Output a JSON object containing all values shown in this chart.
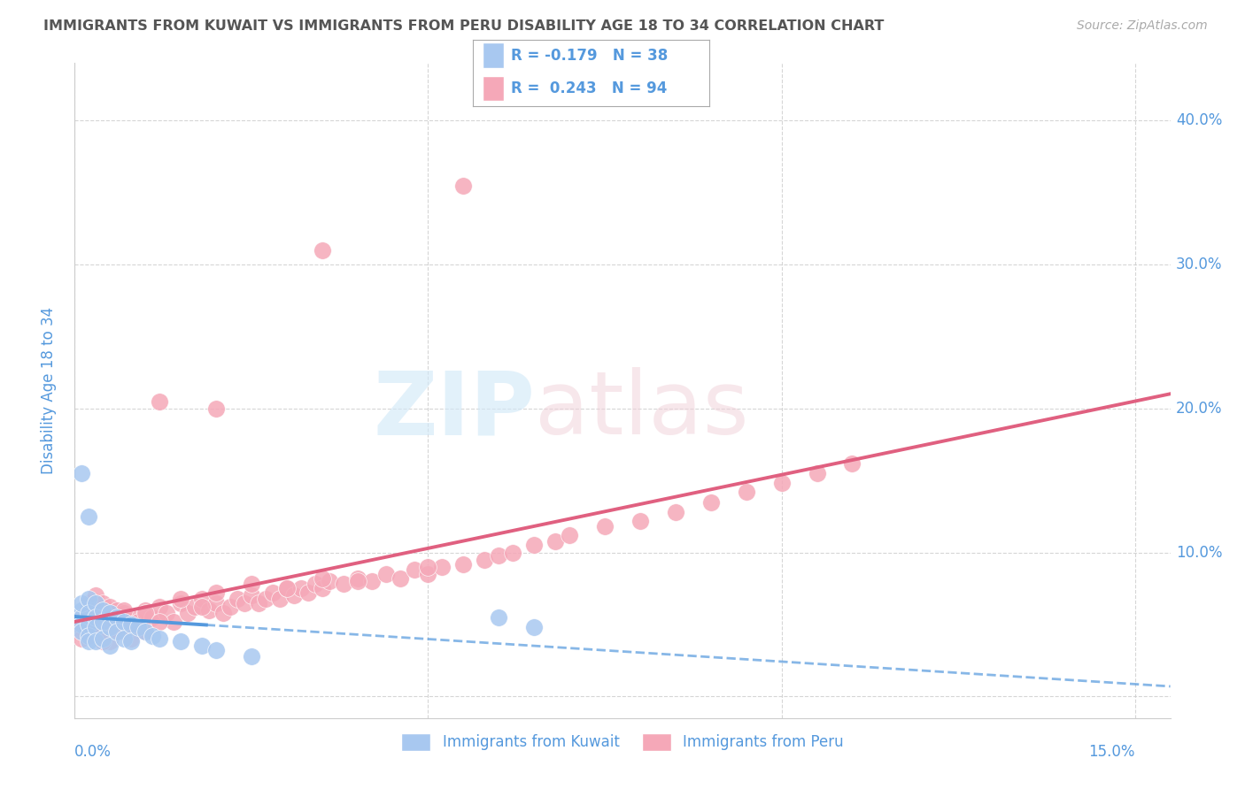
{
  "title": "IMMIGRANTS FROM KUWAIT VS IMMIGRANTS FROM PERU DISABILITY AGE 18 TO 34 CORRELATION CHART",
  "source": "Source: ZipAtlas.com",
  "ylabel": "Disability Age 18 to 34",
  "yticks": [
    0.0,
    0.1,
    0.2,
    0.3,
    0.4
  ],
  "ytick_labels": [
    "",
    "10.0%",
    "20.0%",
    "30.0%",
    "40.0%"
  ],
  "xlim": [
    0.0,
    0.155
  ],
  "ylim": [
    -0.015,
    0.44
  ],
  "kuwait_R": -0.179,
  "kuwait_N": 38,
  "peru_R": 0.243,
  "peru_N": 94,
  "kuwait_color": "#a8c8f0",
  "peru_color": "#f5a8b8",
  "kuwait_line_color": "#5599dd",
  "peru_line_color": "#e06080",
  "axis_label_color": "#5599dd",
  "background_color": "#ffffff",
  "grid_color": "#cccccc",
  "kuwait_x": [
    0.001,
    0.001,
    0.001,
    0.001,
    0.001,
    0.002,
    0.002,
    0.002,
    0.002,
    0.002,
    0.003,
    0.003,
    0.003,
    0.003,
    0.004,
    0.004,
    0.004,
    0.005,
    0.005,
    0.005,
    0.006,
    0.006,
    0.007,
    0.007,
    0.008,
    0.008,
    0.009,
    0.01,
    0.011,
    0.012,
    0.015,
    0.018,
    0.02,
    0.025,
    0.06,
    0.065,
    0.001,
    0.002
  ],
  "kuwait_y": [
    0.06,
    0.055,
    0.065,
    0.05,
    0.045,
    0.068,
    0.058,
    0.05,
    0.042,
    0.038,
    0.065,
    0.055,
    0.048,
    0.038,
    0.06,
    0.052,
    0.04,
    0.058,
    0.048,
    0.035,
    0.055,
    0.045,
    0.052,
    0.04,
    0.05,
    0.038,
    0.048,
    0.045,
    0.042,
    0.04,
    0.038,
    0.035,
    0.032,
    0.028,
    0.055,
    0.048,
    0.155,
    0.125
  ],
  "peru_x": [
    0.001,
    0.001,
    0.001,
    0.002,
    0.002,
    0.002,
    0.003,
    0.003,
    0.003,
    0.004,
    0.004,
    0.004,
    0.005,
    0.005,
    0.005,
    0.006,
    0.006,
    0.007,
    0.007,
    0.008,
    0.008,
    0.009,
    0.01,
    0.01,
    0.011,
    0.012,
    0.013,
    0.014,
    0.015,
    0.016,
    0.017,
    0.018,
    0.019,
    0.02,
    0.021,
    0.022,
    0.023,
    0.024,
    0.025,
    0.026,
    0.027,
    0.028,
    0.029,
    0.03,
    0.031,
    0.032,
    0.033,
    0.034,
    0.035,
    0.036,
    0.038,
    0.04,
    0.042,
    0.044,
    0.046,
    0.048,
    0.05,
    0.052,
    0.055,
    0.058,
    0.06,
    0.062,
    0.065,
    0.068,
    0.07,
    0.075,
    0.08,
    0.085,
    0.09,
    0.095,
    0.1,
    0.105,
    0.11,
    0.002,
    0.003,
    0.004,
    0.005,
    0.006,
    0.007,
    0.008,
    0.01,
    0.012,
    0.015,
    0.018,
    0.02,
    0.025,
    0.03,
    0.035,
    0.04,
    0.05,
    0.012,
    0.02,
    0.035,
    0.055
  ],
  "peru_y": [
    0.055,
    0.048,
    0.04,
    0.065,
    0.058,
    0.045,
    0.07,
    0.06,
    0.048,
    0.065,
    0.055,
    0.042,
    0.062,
    0.052,
    0.038,
    0.06,
    0.048,
    0.058,
    0.045,
    0.055,
    0.04,
    0.052,
    0.06,
    0.045,
    0.055,
    0.062,
    0.058,
    0.052,
    0.065,
    0.058,
    0.062,
    0.068,
    0.06,
    0.065,
    0.058,
    0.062,
    0.068,
    0.065,
    0.07,
    0.065,
    0.068,
    0.072,
    0.068,
    0.075,
    0.07,
    0.075,
    0.072,
    0.078,
    0.075,
    0.08,
    0.078,
    0.082,
    0.08,
    0.085,
    0.082,
    0.088,
    0.085,
    0.09,
    0.092,
    0.095,
    0.098,
    0.1,
    0.105,
    0.108,
    0.112,
    0.118,
    0.122,
    0.128,
    0.135,
    0.142,
    0.148,
    0.155,
    0.162,
    0.042,
    0.05,
    0.038,
    0.055,
    0.045,
    0.06,
    0.048,
    0.058,
    0.052,
    0.068,
    0.062,
    0.072,
    0.078,
    0.075,
    0.082,
    0.08,
    0.09,
    0.205,
    0.2,
    0.31,
    0.355
  ]
}
